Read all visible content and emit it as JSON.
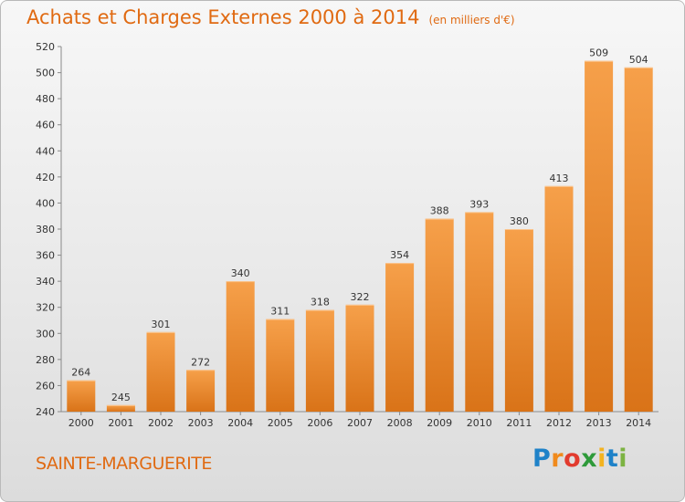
{
  "title": "Achats et Charges Externes 2000 à 2014",
  "unit": "(en milliers d'€)",
  "town": "SAINTE-MARGUERITE",
  "brand": {
    "letters": [
      "P",
      "r",
      "o",
      "x",
      "i",
      "t",
      "i"
    ],
    "colors": [
      "#1f82c8",
      "#f08a1c",
      "#e23b2e",
      "#2e9a3a",
      "#f3b320",
      "#1f82c8",
      "#7cb342"
    ]
  },
  "colors": {
    "bar_light": "#f6a04a",
    "bar_dark": "#d97318",
    "text": "#333333",
    "accent": "#e06a12"
  },
  "chart_data": {
    "type": "bar",
    "title": "Achats et Charges Externes 2000 à 2014",
    "subtitle": "(en milliers d'€)",
    "categories": [
      "2000",
      "2001",
      "2002",
      "2003",
      "2004",
      "2005",
      "2006",
      "2007",
      "2008",
      "2009",
      "2010",
      "2011",
      "2012",
      "2013",
      "2014"
    ],
    "values": [
      264,
      245,
      301,
      272,
      340,
      311,
      318,
      322,
      354,
      388,
      393,
      380,
      413,
      509,
      504
    ],
    "ylim": [
      240,
      520
    ],
    "yticks": [
      240,
      260,
      280,
      300,
      320,
      340,
      360,
      380,
      400,
      420,
      440,
      460,
      480,
      500,
      520
    ],
    "grid": false,
    "data_labels": true
  }
}
